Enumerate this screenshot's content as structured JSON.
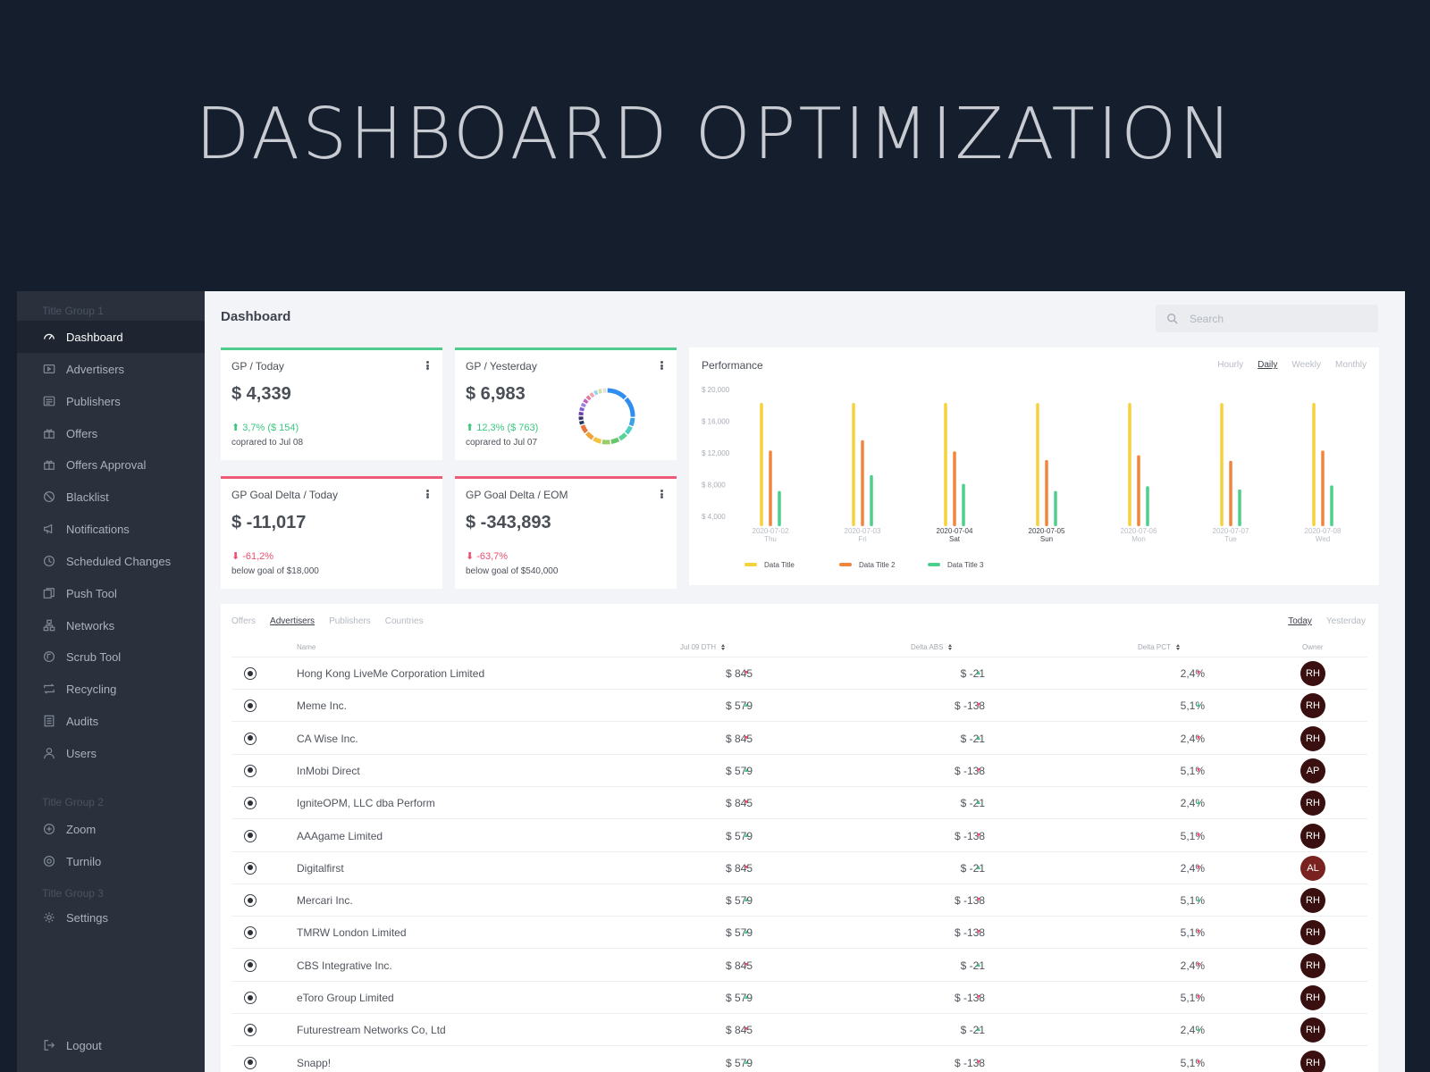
{
  "hero": {
    "title": "DASHBOARD OPTIMIZATION"
  },
  "sidebar": {
    "groups": [
      "Title Group 1",
      "Title Group 2",
      "Title Group 3"
    ],
    "items": [
      {
        "label": "Dashboard",
        "icon": "gauge-icon",
        "active": true
      },
      {
        "label": "Advertisers",
        "icon": "advertisers-icon"
      },
      {
        "label": "Publishers",
        "icon": "publishers-icon"
      },
      {
        "label": "Offers",
        "icon": "gift-icon"
      },
      {
        "label": "Offers Approval",
        "icon": "gift-check-icon"
      },
      {
        "label": "Blacklist",
        "icon": "block-icon"
      },
      {
        "label": "Notifications",
        "icon": "megaphone-icon"
      },
      {
        "label": "Scheduled Changes",
        "icon": "clock-icon"
      },
      {
        "label": "Push Tool",
        "icon": "push-icon"
      },
      {
        "label": "Networks",
        "icon": "network-icon"
      },
      {
        "label": "Scrub Tool",
        "icon": "scrub-icon"
      },
      {
        "label": "Recycling",
        "icon": "recycle-icon"
      },
      {
        "label": "Audits",
        "icon": "audit-icon"
      },
      {
        "label": "Users",
        "icon": "user-icon"
      },
      {
        "label": "Zoom",
        "icon": "zoom-icon"
      },
      {
        "label": "Turnilo",
        "icon": "turnilo-icon"
      },
      {
        "label": "Settings",
        "icon": "gear-icon"
      },
      {
        "label": "Logout",
        "icon": "logout-icon"
      }
    ]
  },
  "header": {
    "title": "Dashboard",
    "search_placeholder": "Search"
  },
  "cards": [
    {
      "title": "GP / Today",
      "value": "$ 4,339",
      "delta": "3,7% ($ 154)",
      "direction": "up",
      "note": "coprared to Jul 08"
    },
    {
      "title": "GP / Yesterday",
      "value": "$ 6,983",
      "delta": "12,3% ($ 763)",
      "direction": "up",
      "note": "coprared to Jul 07"
    },
    {
      "title": "GP Goal Delta / Today",
      "value": "$ -11,017",
      "delta": "-61,2%",
      "direction": "down",
      "note": "below goal of $18,000"
    },
    {
      "title": "GP Goal Delta / EOM",
      "value": "$ -343,893",
      "delta": "-63,7%",
      "direction": "down",
      "note": "below goal of $540,000"
    }
  ],
  "performance": {
    "title": "Performance",
    "tabs": [
      "Hourly",
      "Daily",
      "Weekly",
      "Monthly"
    ],
    "active_tab": "Daily"
  },
  "chart_data": {
    "type": "bar",
    "categories": [
      "2020-07-02",
      "2020-07-03",
      "2020-07-04",
      "2020-07-05",
      "2020-07-06",
      "2020-07-07",
      "2020-07-08"
    ],
    "day_labels": [
      "Thu",
      "Fri",
      "Sat",
      "Sun",
      "Mon",
      "Tue",
      "Wed"
    ],
    "highlighted": [
      false,
      false,
      true,
      true,
      false,
      false,
      false
    ],
    "yticks": [
      "$ 20,000",
      "$ 16,000",
      "$ 12,000",
      "$ 8,000",
      "$ 4,000"
    ],
    "ylim": [
      4000,
      20000
    ],
    "series": [
      {
        "name": "Data Title",
        "color": "#f5d23b",
        "values": [
          18300,
          18300,
          18300,
          18300,
          18300,
          18300,
          18300
        ]
      },
      {
        "name": "Data Title 2",
        "color": "#f0853b",
        "values": [
          12300,
          13600,
          12200,
          11100,
          11700,
          11000,
          12300
        ]
      },
      {
        "name": "Data Title 3",
        "color": "#4fcf8c",
        "values": [
          7200,
          9200,
          8100,
          7200,
          7800,
          7400,
          7900
        ]
      }
    ],
    "legend_position": "bottom-left",
    "grid": false
  },
  "donut": {
    "colors": [
      "#2f8ef0",
      "#2f8ef0",
      "#3aa3e8",
      "#4fcfc0",
      "#5bd19a",
      "#69c46c",
      "#9ccc65",
      "#f5c242",
      "#f0a23b",
      "#e8743b",
      "#1f3a5f",
      "#3a2f70",
      "#6a3fb5",
      "#7a5fd0",
      "#9b7fe0",
      "#c060c0",
      "#e07aa0",
      "#f2a0b0",
      "#9ad0f0",
      "#cfe3a0",
      "#e0e0e0"
    ]
  },
  "table": {
    "tabs": [
      "Offers",
      "Advertisers",
      "Publishers",
      "Countries"
    ],
    "active_tab": "Advertisers",
    "range_tabs": [
      "Today",
      "Yesterday"
    ],
    "active_range": "Today",
    "columns": [
      "Name",
      "Jul 09 DTH",
      "Delta ABS",
      "Delta PCT",
      "Owner"
    ],
    "rows": [
      {
        "name": "Hong Kong LiveMe Corporation Limited",
        "gp": "$ 845",
        "gp_dir": "down",
        "abs": "$ -21",
        "abs_dir": "up",
        "pct": "2,4%",
        "pct_dir": "down",
        "owner": "RH"
      },
      {
        "name": "Meme Inc.",
        "gp": "$ 579",
        "gp_dir": "up",
        "abs": "$ -138",
        "abs_dir": "down",
        "pct": "5,1%",
        "pct_dir": "up",
        "owner": "RH"
      },
      {
        "name": "CA Wise Inc.",
        "gp": "$ 845",
        "gp_dir": "down",
        "abs": "$ -21",
        "abs_dir": "up",
        "pct": "2,4%",
        "pct_dir": "down",
        "owner": "RH"
      },
      {
        "name": "InMobi Direct",
        "gp": "$ 579",
        "gp_dir": "up",
        "abs": "$ -138",
        "abs_dir": "down",
        "pct": "5,1%",
        "pct_dir": "down",
        "owner": "AP"
      },
      {
        "name": "IgniteOPM, LLC dba Perform",
        "gp": "$ 845",
        "gp_dir": "down",
        "abs": "$ -21",
        "abs_dir": "up",
        "pct": "2,4%",
        "pct_dir": "up",
        "owner": "RH"
      },
      {
        "name": "AAAgame Limited",
        "gp": "$ 579",
        "gp_dir": "up",
        "abs": "$ -138",
        "abs_dir": "down",
        "pct": "5,1%",
        "pct_dir": "down",
        "owner": "RH"
      },
      {
        "name": "Digitalfirst",
        "gp": "$ 845",
        "gp_dir": "down",
        "abs": "$ -21",
        "abs_dir": "up",
        "pct": "2,4%",
        "pct_dir": "down",
        "owner": "AL"
      },
      {
        "name": "Mercari Inc.",
        "gp": "$ 579",
        "gp_dir": "up",
        "abs": "$ -138",
        "abs_dir": "down",
        "pct": "5,1%",
        "pct_dir": "up",
        "owner": "RH"
      },
      {
        "name": "TMRW London Limited",
        "gp": "$ 579",
        "gp_dir": "up",
        "abs": "$ -138",
        "abs_dir": "down",
        "pct": "5,1%",
        "pct_dir": "down",
        "owner": "RH"
      },
      {
        "name": "CBS Integrative Inc.",
        "gp": "$ 845",
        "gp_dir": "down",
        "abs": "$ -21",
        "abs_dir": "up",
        "pct": "2,4%",
        "pct_dir": "down",
        "owner": "RH"
      },
      {
        "name": "eToro Group Limited",
        "gp": "$ 579",
        "gp_dir": "up",
        "abs": "$ -138",
        "abs_dir": "down",
        "pct": "5,1%",
        "pct_dir": "down",
        "owner": "RH"
      },
      {
        "name": "Futurestream Networks Co, Ltd",
        "gp": "$ 845",
        "gp_dir": "down",
        "abs": "$ -21",
        "abs_dir": "up",
        "pct": "2,4%",
        "pct_dir": "up",
        "owner": "RH"
      },
      {
        "name": "Snapp!",
        "gp": "$ 579",
        "gp_dir": "up",
        "abs": "$ -138",
        "abs_dir": "down",
        "pct": "5,1%",
        "pct_dir": "down",
        "owner": "RH"
      }
    ]
  },
  "colors": {
    "positive": "#3cc985",
    "negative": "#ee4d6e",
    "avatar_default": "#3a0f10",
    "avatar_alt": "#7a2220"
  }
}
